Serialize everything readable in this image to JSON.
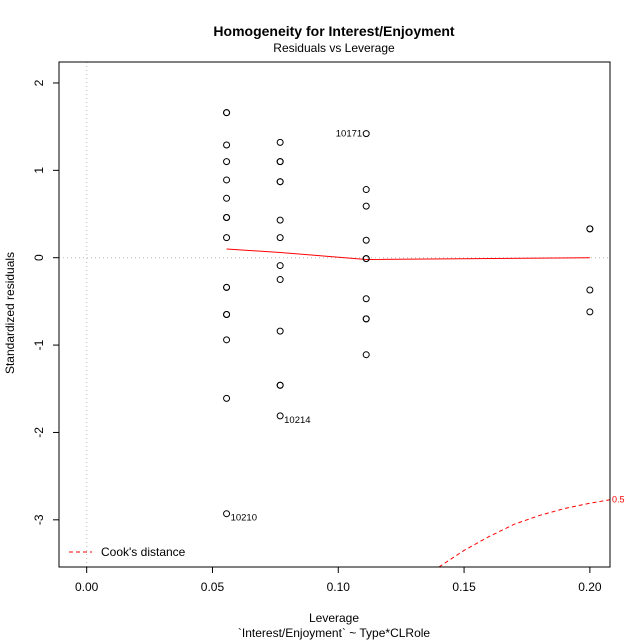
{
  "chart_data": {
    "type": "scatter",
    "title": "Homogeneity for Interest/Enjoyment",
    "subtitle": "Residuals vs Leverage",
    "xlabel": "Leverage",
    "xlabel_sub": "`Interest/Enjoyment` ~ Type*CLRole",
    "ylabel": "Standardized residuals",
    "xlim": [
      -0.011,
      0.208
    ],
    "ylim": [
      -3.54,
      2.24
    ],
    "x_ticks": [
      0.0,
      0.05,
      0.1,
      0.15,
      0.2
    ],
    "x_tick_labels": [
      "0.00",
      "0.05",
      "0.10",
      "0.15",
      "0.20"
    ],
    "y_ticks": [
      -3,
      -2,
      -1,
      0,
      1,
      2
    ],
    "y_tick_labels": [
      "-3",
      "-2",
      "-1",
      "0",
      "1",
      "2"
    ],
    "reference_lines": {
      "x": 0,
      "y": 0,
      "style": "dotted",
      "color": "#bbbbbb"
    },
    "series": [
      {
        "type": "points",
        "color": "#000000",
        "points": [
          {
            "x": 0.0556,
            "y": 1.66
          },
          {
            "x": 0.0556,
            "y": 1.66
          },
          {
            "x": 0.0556,
            "y": 1.29
          },
          {
            "x": 0.0556,
            "y": 1.1
          },
          {
            "x": 0.0556,
            "y": 0.89
          },
          {
            "x": 0.0556,
            "y": 0.68
          },
          {
            "x": 0.0556,
            "y": 0.46
          },
          {
            "x": 0.0556,
            "y": 0.46
          },
          {
            "x": 0.0556,
            "y": 0.23
          },
          {
            "x": 0.0556,
            "y": -0.34
          },
          {
            "x": 0.0556,
            "y": -0.34
          },
          {
            "x": 0.0556,
            "y": -0.65
          },
          {
            "x": 0.0556,
            "y": -0.65
          },
          {
            "x": 0.0556,
            "y": -0.94
          },
          {
            "x": 0.0556,
            "y": -1.61
          },
          {
            "x": 0.0556,
            "y": -2.93
          },
          {
            "x": 0.0769,
            "y": 1.32
          },
          {
            "x": 0.0769,
            "y": 1.1
          },
          {
            "x": 0.0769,
            "y": 1.1
          },
          {
            "x": 0.0769,
            "y": 0.87
          },
          {
            "x": 0.0769,
            "y": 0.87
          },
          {
            "x": 0.0769,
            "y": 0.43
          },
          {
            "x": 0.0769,
            "y": 0.23
          },
          {
            "x": 0.0769,
            "y": -0.09
          },
          {
            "x": 0.0769,
            "y": -0.25
          },
          {
            "x": 0.0769,
            "y": -0.84
          },
          {
            "x": 0.0769,
            "y": -1.46
          },
          {
            "x": 0.0769,
            "y": -1.46
          },
          {
            "x": 0.0769,
            "y": -1.81
          },
          {
            "x": 0.1111,
            "y": 1.42
          },
          {
            "x": 0.1111,
            "y": 0.78
          },
          {
            "x": 0.1111,
            "y": 0.59
          },
          {
            "x": 0.1111,
            "y": 0.2
          },
          {
            "x": 0.1111,
            "y": -0.01
          },
          {
            "x": 0.1111,
            "y": -0.01
          },
          {
            "x": 0.1111,
            "y": -0.47
          },
          {
            "x": 0.1111,
            "y": -0.7
          },
          {
            "x": 0.1111,
            "y": -0.7
          },
          {
            "x": 0.1111,
            "y": -1.11
          },
          {
            "x": 0.2,
            "y": 0.33
          },
          {
            "x": 0.2,
            "y": 0.33
          },
          {
            "x": 0.2,
            "y": -0.37
          },
          {
            "x": 0.2,
            "y": -0.62
          }
        ]
      },
      {
        "type": "smooth-line",
        "color": "#ff0000",
        "points": [
          {
            "x": 0.0556,
            "y": 0.1
          },
          {
            "x": 0.0769,
            "y": 0.06
          },
          {
            "x": 0.1111,
            "y": -0.02
          },
          {
            "x": 0.2,
            "y": 0.0
          }
        ]
      },
      {
        "type": "cooks-distance-contour",
        "color": "#ff0000",
        "style": "dashed",
        "level_label": "0.5",
        "points": [
          {
            "x": 0.14,
            "y": -3.54
          },
          {
            "x": 0.15,
            "y": -3.35
          },
          {
            "x": 0.16,
            "y": -3.19
          },
          {
            "x": 0.17,
            "y": -3.05
          },
          {
            "x": 0.18,
            "y": -2.95
          },
          {
            "x": 0.19,
            "y": -2.87
          },
          {
            "x": 0.2,
            "y": -2.81
          },
          {
            "x": 0.208,
            "y": -2.77
          }
        ]
      }
    ],
    "annotations": [
      {
        "text": "10171",
        "x": 0.1111,
        "y": 1.42,
        "side": "left"
      },
      {
        "text": "10214",
        "x": 0.0769,
        "y": -1.81,
        "side": "right"
      },
      {
        "text": "10210",
        "x": 0.0556,
        "y": -2.93,
        "side": "right"
      }
    ],
    "legend": {
      "position": "bottom-left",
      "entries": [
        {
          "label": "Cook's distance",
          "color": "#ff0000",
          "style": "dashed"
        }
      ]
    }
  }
}
